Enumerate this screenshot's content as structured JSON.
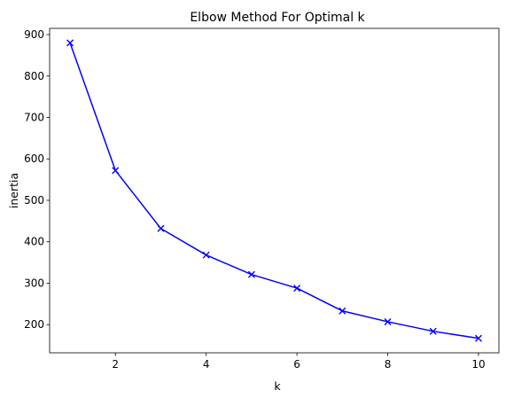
{
  "chart_data": {
    "type": "line",
    "title": "Elbow Method For Optimal k",
    "xlabel": "k",
    "ylabel": "inertia",
    "xlim": [
      0.55,
      10.45
    ],
    "ylim": [
      132,
      915
    ],
    "xticks": [
      2,
      4,
      6,
      8,
      10
    ],
    "yticks": [
      200,
      300,
      400,
      500,
      600,
      700,
      800,
      900
    ],
    "grid": false,
    "series": [
      {
        "color": "#0000ff",
        "marker": "x",
        "x": [
          1,
          2,
          3,
          4,
          5,
          6,
          7,
          8,
          9,
          10
        ],
        "y": [
          880,
          572,
          432,
          368,
          321,
          288,
          233,
          207,
          184,
          167
        ]
      }
    ]
  }
}
